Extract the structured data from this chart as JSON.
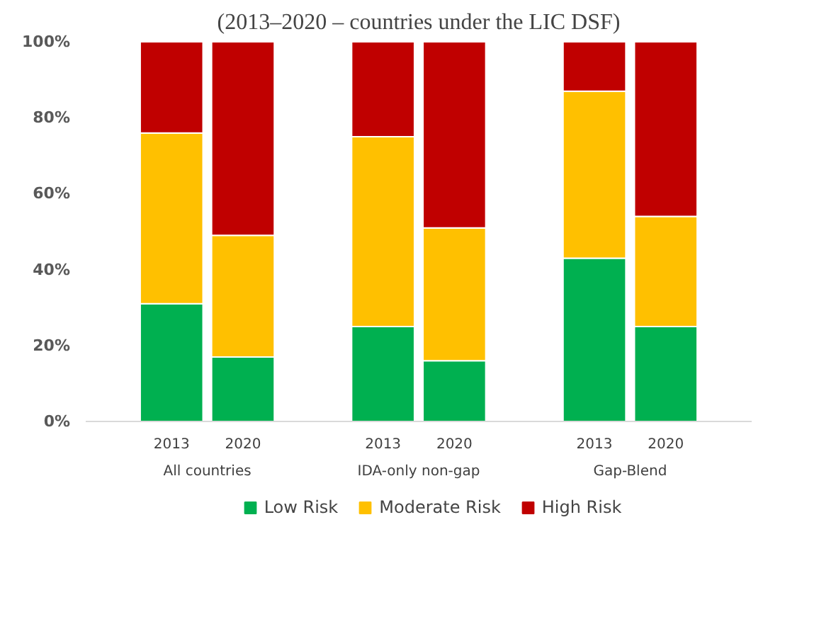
{
  "chart_data": {
    "type": "bar",
    "stacked": true,
    "title": "(2013–2020 – countries under the LIC DSF)",
    "categories": [
      "2013",
      "2020",
      "2013",
      "2020",
      "2013",
      "2020"
    ],
    "series": [
      {
        "name": "Low Risk",
        "color": "#00b050",
        "values": [
          31,
          17,
          25,
          16,
          43,
          25
        ]
      },
      {
        "name": "Moderate Risk",
        "color": "#ffc000",
        "values": [
          45,
          32,
          50,
          35,
          44,
          29
        ]
      },
      {
        "name": "High Risk",
        "color": "#c00000",
        "values": [
          24,
          51,
          25,
          49,
          13,
          46
        ]
      }
    ],
    "annotations": [
      "All countries",
      "IDA-only non-gap",
      "Gap-Blend"
    ],
    "ylim": [
      0,
      100
    ],
    "yticks": [
      {
        "value": 0,
        "label": "0%"
      },
      {
        "value": 20,
        "label": "20%"
      },
      {
        "value": 40,
        "label": "40%"
      },
      {
        "value": 60,
        "label": "60%"
      },
      {
        "value": 80,
        "label": "80%"
      },
      {
        "value": 100,
        "label": "100%"
      }
    ],
    "grid": false,
    "legend": "bottom"
  }
}
